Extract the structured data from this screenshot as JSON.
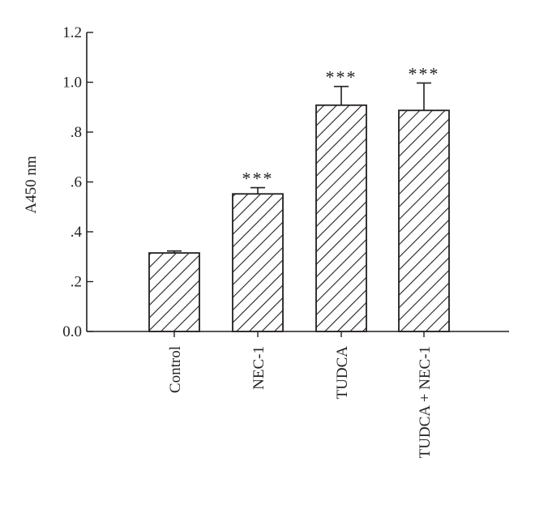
{
  "chart_data": {
    "type": "bar",
    "title": "",
    "xlabel": "",
    "ylabel": "A450 nm",
    "ylim": [
      0,
      1.2
    ],
    "yticks": [
      0.0,
      0.2,
      0.4,
      0.6,
      0.8,
      1.0,
      1.2
    ],
    "ytick_labels": [
      "0.0",
      ".2",
      ".4",
      ".6",
      ".8",
      "1.0",
      "1.2"
    ],
    "categories": [
      "Control",
      "NEC-1",
      "TUDCA",
      "TUDCA + NEC-1"
    ],
    "values": [
      0.315,
      0.552,
      0.908,
      0.887
    ],
    "errors": [
      0.008,
      0.025,
      0.075,
      0.11
    ],
    "significance": [
      "",
      "***",
      "***",
      "***"
    ],
    "bar_fill": "diagonal-hatch",
    "colors": {
      "ink": "#231f20",
      "background": "#ffffff"
    },
    "grid": false,
    "legend": "none"
  }
}
